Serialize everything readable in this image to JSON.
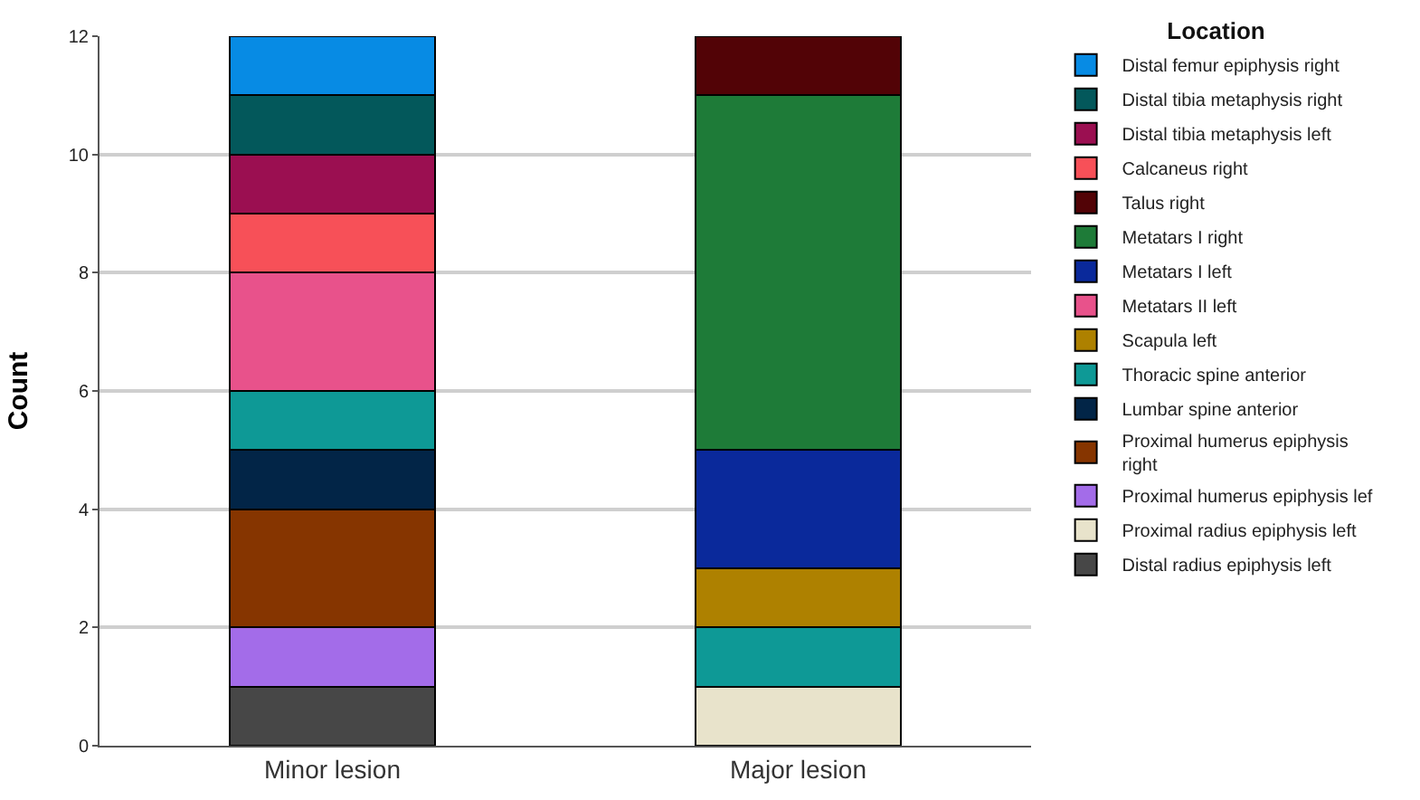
{
  "chart_data": {
    "type": "bar",
    "stacked": true,
    "ylabel": "Count",
    "legend_title": "Location",
    "categories": [
      "Minor lesion",
      "Major lesion"
    ],
    "ylim": [
      0,
      12
    ],
    "yticks": [
      0,
      2,
      4,
      6,
      8,
      10,
      12
    ],
    "grid": "y",
    "legend": "right",
    "series": [
      {
        "name": "Distal radius epiphysis left",
        "color": "#474747",
        "values": [
          1,
          null
        ]
      },
      {
        "name": "Proximal radius epiphysis left",
        "color": "#e8e3cb",
        "values": [
          null,
          1
        ]
      },
      {
        "name": "Proximal humerus epiphysis lef",
        "color": "#a36ce9",
        "values": [
          1,
          null
        ]
      },
      {
        "name": "Proximal humerus epiphysis\nright",
        "color": "#863500",
        "values": [
          2,
          null
        ]
      },
      {
        "name": "Lumbar spine anterior",
        "color": "#022547",
        "values": [
          1,
          null
        ]
      },
      {
        "name": "Thoracic spine anterior",
        "color": "#0e9996",
        "values": [
          1,
          1
        ]
      },
      {
        "name": "Scapula left",
        "color": "#ae8100",
        "values": [
          null,
          1
        ]
      },
      {
        "name": "Metatars II left",
        "color": "#e8528b",
        "values": [
          2,
          null
        ]
      },
      {
        "name": "Metatars I left",
        "color": "#0a299b",
        "values": [
          null,
          2
        ]
      },
      {
        "name": "Metatars I right",
        "color": "#1e7b38",
        "values": [
          null,
          6
        ]
      },
      {
        "name": "Talus right",
        "color": "#520306",
        "values": [
          null,
          1
        ]
      },
      {
        "name": "Calcaneus right",
        "color": "#f75058",
        "values": [
          1,
          null
        ]
      },
      {
        "name": "Distal tibia metaphysis left",
        "color": "#9b0f51",
        "values": [
          1,
          null
        ]
      },
      {
        "name": "Distal tibia metaphysis right",
        "color": "#03585b",
        "values": [
          1,
          null
        ]
      },
      {
        "name": "Distal femur epiphysis right",
        "color": "#078be4",
        "values": [
          1,
          null
        ]
      }
    ]
  }
}
